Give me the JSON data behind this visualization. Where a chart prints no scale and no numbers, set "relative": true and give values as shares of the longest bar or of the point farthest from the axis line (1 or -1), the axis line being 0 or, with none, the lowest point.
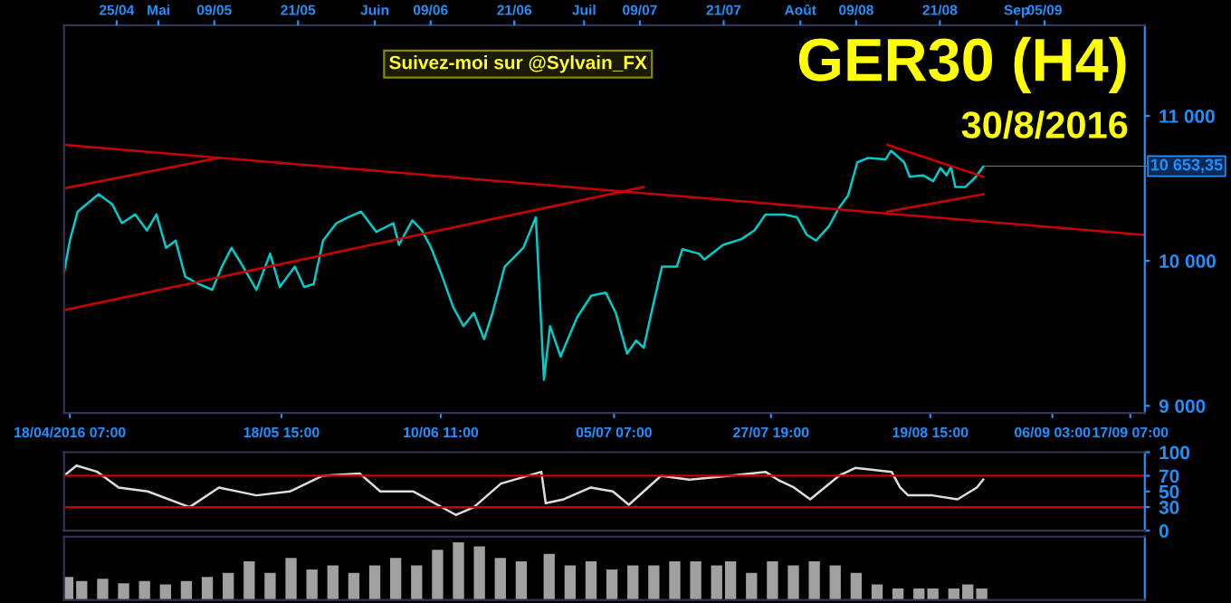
{
  "chart_data": [
    {
      "type": "line",
      "title": "GER30 (H4)",
      "subtitle": "30/8/2016",
      "annotations": [
        "Suivez-moi sur @Sylvain_FX",
        {
          "text": "10 653,35",
          "x": "2016-08-27T05:00",
          "y": 10653.35
        }
      ],
      "xlim": [
        "2016-04-17T11:00",
        "2016-09-19T09:00"
      ],
      "ylim": [
        8950,
        11625
      ],
      "xticks": [
        {
          "value": "2016-04-18T07:00",
          "label": "18/04/2016 07:00"
        },
        {
          "value": "2016-05-18T15:00",
          "label": "18/05 15:00"
        },
        {
          "value": "2016-06-10T11:00",
          "label": "10/06 11:00"
        },
        {
          "value": "2016-07-05T07:00",
          "label": "05/07 07:00"
        },
        {
          "value": "2016-07-27T19:00",
          "label": "27/07 19:00"
        },
        {
          "value": "2016-08-19T15:00",
          "label": "19/08 15:00"
        },
        {
          "value": "2016-09-06T03:00",
          "label": "06/09 03:00"
        },
        {
          "value": "2016-09-17T07:00",
          "label": "17/09 07:00"
        }
      ],
      "x2lim": [
        "2016-04-17T11:00",
        "2016-09-19T09:00"
      ],
      "x2ticks": [
        {
          "value": "2016-04-25",
          "label": "25/04"
        },
        {
          "value": "2016-05-01",
          "label": "Mai"
        },
        {
          "value": "2016-05-09",
          "label": "09/05"
        },
        {
          "value": "2016-05-21",
          "label": "21/05"
        },
        {
          "value": "2016-06-01",
          "label": "Juin"
        },
        {
          "value": "2016-06-09",
          "label": "09/06"
        },
        {
          "value": "2016-06-21",
          "label": "21/06"
        },
        {
          "value": "2016-07-01",
          "label": "Juil"
        },
        {
          "value": "2016-07-09",
          "label": "09/07"
        },
        {
          "value": "2016-07-21",
          "label": "21/07"
        },
        {
          "value": "2016-08-01",
          "label": "Août"
        },
        {
          "value": "2016-08-09",
          "label": "09/08"
        },
        {
          "value": "2016-08-21",
          "label": "21/08"
        },
        {
          "value": "2016-09-01",
          "label": "Sep"
        },
        {
          "value": "2016-09-05",
          "label": "05/09"
        }
      ],
      "yticks": [
        {
          "value": 9000,
          "label": "9 000"
        },
        {
          "value": 10000,
          "label": "10 000"
        },
        {
          "value": 11000,
          "label": "11 000"
        }
      ],
      "series": [
        {
          "color": "#00cccc",
          "x": [
            "2016-04-17T11:00",
            "2016-04-18T07:00",
            "2016-04-19T10:00",
            "2016-04-22T10:00",
            "2016-04-24T09:00",
            "2016-04-25T18:00",
            "2016-04-27T16:00",
            "2016-04-29T08:00",
            "2016-04-30T17:00",
            "2016-05-02T02:00",
            "2016-05-03T11:00",
            "2016-05-04T20:00",
            "2016-05-06T19:00",
            "2016-05-08T17:00",
            "2016-05-10T02:00",
            "2016-05-11T11:00",
            "2016-05-13T03:00",
            "2016-05-15T01:00",
            "2016-05-17T00:00",
            "2016-05-18T09:00",
            "2016-05-20T13:00",
            "2016-05-21T21:00",
            "2016-05-23T06:00",
            "2016-05-24T14:00",
            "2016-05-26T12:00",
            "2016-05-28T03:00",
            "2016-05-30T01:00",
            "2016-06-01T05:00",
            "2016-06-03T16:00",
            "2016-06-04T11:00",
            "2016-06-06T09:00",
            "2016-06-07T18:00",
            "2016-06-09T02:00",
            "2016-06-10T11:00",
            "2016-06-12T06:00",
            "2016-06-13T17:00",
            "2016-06-15T05:00",
            "2016-06-16T16:00",
            "2016-06-17T21:00",
            "2016-06-19T15:00",
            "2016-06-22T07:00",
            "2016-06-24T02:00",
            "2016-06-25T06:00",
            "2016-06-26T03:00",
            "2016-06-27T15:00",
            "2016-06-30T00:00",
            "2016-07-02T01:00",
            "2016-07-04T03:00",
            "2016-07-05T13:00",
            "2016-07-07T04:00",
            "2016-07-08T11:00",
            "2016-07-09T13:00",
            "2016-07-10T20:00",
            "2016-07-12T04:00",
            "2016-07-14T07:00",
            "2016-07-15T02:00",
            "2016-07-17T11:00",
            "2016-07-18T06:00",
            "2016-07-20T22:00",
            "2016-07-23T13:00",
            "2016-07-25T10:00",
            "2016-07-27T00:00",
            "2016-07-29T16:00",
            "2016-07-31T13:00",
            "2016-08-01T22:00",
            "2016-08-03T06:00",
            "2016-08-05T03:00",
            "2016-08-06T11:00",
            "2016-08-07T20:00",
            "2016-08-09T04:00",
            "2016-08-10T18:00",
            "2016-08-13T05:00",
            "2016-08-14T00:00",
            "2016-08-15T21:00",
            "2016-08-16T16:00",
            "2016-08-18T14:00",
            "2016-08-20T01:00",
            "2016-08-21T02:00",
            "2016-08-21T23:00",
            "2016-08-22T14:00",
            "2016-08-23T05:00",
            "2016-08-24T16:00",
            "2016-08-26T04:00",
            "2016-08-27T05:00"
          ],
          "values": [
            9920,
            10140,
            10340,
            10460,
            10390,
            10260,
            10320,
            10210,
            10320,
            10090,
            10140,
            9890,
            9840,
            9800,
            9960,
            10090,
            9960,
            9800,
            10050,
            9820,
            9960,
            9820,
            9840,
            10140,
            10260,
            10300,
            10340,
            10200,
            10260,
            10110,
            10280,
            10210,
            10090,
            9920,
            9680,
            9550,
            9640,
            9460,
            9640,
            9960,
            10090,
            10300,
            9180,
            9550,
            9340,
            9610,
            9760,
            9780,
            9640,
            9360,
            9450,
            9400,
            9680,
            9960,
            9960,
            10080,
            10050,
            10010,
            10110,
            10150,
            10210,
            10320,
            10320,
            10300,
            10180,
            10140,
            10240,
            10360,
            10450,
            10680,
            10710,
            10700,
            10760,
            10680,
            10580,
            10590,
            10550,
            10640,
            10590,
            10650,
            10510,
            10510,
            10580,
            10650
          ]
        },
        {
          "color": "#cc0000",
          "x": [
            "2016-04-17T11:00",
            "2016-09-19T03:00"
          ],
          "values": [
            10800,
            10180
          ]
        },
        {
          "color": "#cc0000",
          "x": [
            "2016-04-17T11:00",
            "2016-05-09T13:00"
          ],
          "values": [
            10500,
            10710
          ]
        },
        {
          "color": "#cc0000",
          "x": [
            "2016-04-17T11:00",
            "2016-07-09T13:00"
          ],
          "values": [
            9660,
            10510
          ]
        },
        {
          "color": "#cc0000",
          "x": [
            "2016-08-13T11:00",
            "2016-08-27T05:00"
          ],
          "values": [
            10340,
            10460
          ]
        },
        {
          "color": "#cc0000",
          "x": [
            "2016-08-13T11:00",
            "2016-08-27T05:00"
          ],
          "values": [
            10800,
            10580
          ]
        }
      ]
    },
    {
      "type": "line",
      "xlim": [
        "2016-04-17T11:00",
        "2016-09-19T09:00"
      ],
      "ylim": [
        0,
        100
      ],
      "yticks": [
        0,
        30,
        50,
        70,
        100
      ],
      "tick_labels": "y",
      "ref_lines": [
        {
          "axis": "y",
          "value": 70,
          "color": "#cc0000"
        },
        {
          "axis": "y",
          "value": 30,
          "color": "#cc0000"
        }
      ],
      "series": [
        {
          "color": "#dddddd",
          "x": [
            "2016-04-17T11:00",
            "2016-04-19T06:00",
            "2016-04-22T06:00",
            "2016-04-25T07:00",
            "2016-04-29T11:00",
            "2016-05-05T11:00",
            "2016-05-09T16:00",
            "2016-05-15T01:00",
            "2016-05-19T20:00",
            "2016-05-24T13:00",
            "2016-05-29T20:00",
            "2016-06-01T19:00",
            "2016-06-06T13:00",
            "2016-06-12T15:00",
            "2016-06-15T05:00",
            "2016-06-19T02:00",
            "2016-06-24T21:00",
            "2016-06-25T12:00",
            "2016-06-28T02:00",
            "2016-07-01T23:00",
            "2016-07-05T03:00",
            "2016-07-07T10:00",
            "2016-07-12T01:00",
            "2016-07-16T01:00",
            "2016-07-21T20:00",
            "2016-07-27T00:00",
            "2016-07-28T18:00",
            "2016-07-31T02:00",
            "2016-08-02T10:00",
            "2016-08-06T13:00",
            "2016-08-08T21:00",
            "2016-08-14T02:00",
            "2016-08-15T07:00",
            "2016-08-16T11:00",
            "2016-08-19T21:00",
            "2016-08-23T13:00",
            "2016-08-26T07:00",
            "2016-08-27T05:00"
          ],
          "values": [
            70,
            83,
            75,
            55,
            50,
            30,
            55,
            45,
            50,
            70,
            73,
            50,
            50,
            20,
            30,
            60,
            75,
            35,
            40,
            55,
            50,
            33,
            70,
            65,
            70,
            75,
            65,
            55,
            40,
            70,
            80,
            75,
            55,
            45,
            45,
            40,
            55,
            65
          ]
        }
      ]
    },
    {
      "type": "bar",
      "relative": true,
      "xlim": [
        "2016-04-17T11:00",
        "2016-09-19T09:00"
      ],
      "tick_labels": false,
      "series": [
        {
          "color": "#a0a0a0",
          "x": [
            "2016-04-18",
            "2016-04-20",
            "2016-04-23",
            "2016-04-26",
            "2016-04-29",
            "2016-05-02",
            "2016-05-05",
            "2016-05-08",
            "2016-05-11",
            "2016-05-14",
            "2016-05-17",
            "2016-05-20",
            "2016-05-23",
            "2016-05-26",
            "2016-05-29",
            "2016-06-01",
            "2016-06-04",
            "2016-06-07",
            "2016-06-10",
            "2016-06-13",
            "2016-06-16",
            "2016-06-19",
            "2016-06-22",
            "2016-06-26",
            "2016-06-29",
            "2016-07-02",
            "2016-07-05",
            "2016-07-08",
            "2016-07-11",
            "2016-07-14",
            "2016-07-17",
            "2016-07-20",
            "2016-07-22",
            "2016-07-25",
            "2016-07-28",
            "2016-07-31",
            "2016-08-03",
            "2016-08-06",
            "2016-08-09",
            "2016-08-12",
            "2016-08-15",
            "2016-08-18",
            "2016-08-20",
            "2016-08-23",
            "2016-08-25",
            "2016-08-27"
          ],
          "values": [
            0.4,
            0.33,
            0.37,
            0.29,
            0.33,
            0.27,
            0.33,
            0.4,
            0.47,
            0.67,
            0.47,
            0.73,
            0.53,
            0.6,
            0.47,
            0.6,
            0.73,
            0.6,
            0.87,
            1,
            0.93,
            0.73,
            0.67,
            0.8,
            0.6,
            0.67,
            0.53,
            0.6,
            0.6,
            0.67,
            0.67,
            0.6,
            0.67,
            0.47,
            0.67,
            0.6,
            0.67,
            0.6,
            0.47,
            0.27,
            0.2,
            0.2,
            0.2,
            0.2,
            0.27,
            0.2
          ]
        }
      ]
    }
  ]
}
